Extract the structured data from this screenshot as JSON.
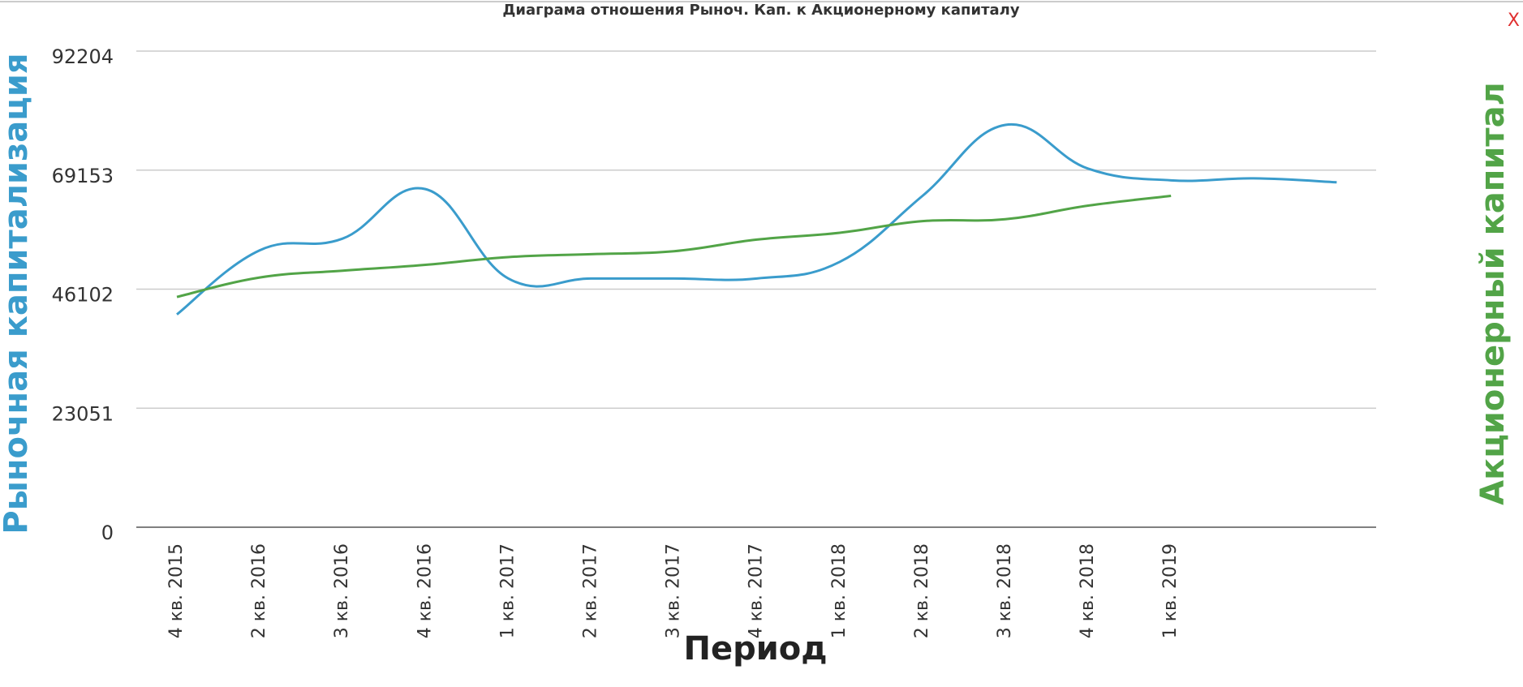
{
  "chart_data": {
    "type": "line",
    "title": "Диаграма отношения Рыноч. Кап. к Акционерному капиталу",
    "close_button": "X",
    "x_label": "Период",
    "y_label": "Рыночная капитализация",
    "y2_label": "Акционерный капитал",
    "categories": [
      "4 кв. 2015",
      "2 кв. 2016",
      "3 кв. 2016",
      "4 кв. 2016",
      "1 кв. 2017",
      "2 кв. 2017",
      "3 кв. 2017",
      "4 кв. 2017",
      "1 кв. 2018",
      "2 кв. 2018",
      "3 кв. 2018",
      "4 кв. 2018",
      "1 кв. 2019",
      null,
      null
    ],
    "series": [
      {
        "name": "Рыночная капитализация",
        "color": "#3a9ccc",
        "values": [
          41209,
          53629,
          55887,
          65484,
          48172,
          48172,
          48172,
          48172,
          51371,
          64167,
          77904,
          69436,
          67178,
          67554,
          66801
        ]
      },
      {
        "name": "Акционерный капитал",
        "color": "#52a447",
        "values": [
          44597,
          48360,
          49678,
          50807,
          52312,
          52877,
          53441,
          55699,
          57016,
          59274,
          59650,
          62284,
          64167,
          null,
          null
        ]
      }
    ],
    "ylim": [
      0,
      92204
    ],
    "yticks": [
      0,
      23051,
      46102,
      69153,
      92204
    ],
    "grid": true
  }
}
